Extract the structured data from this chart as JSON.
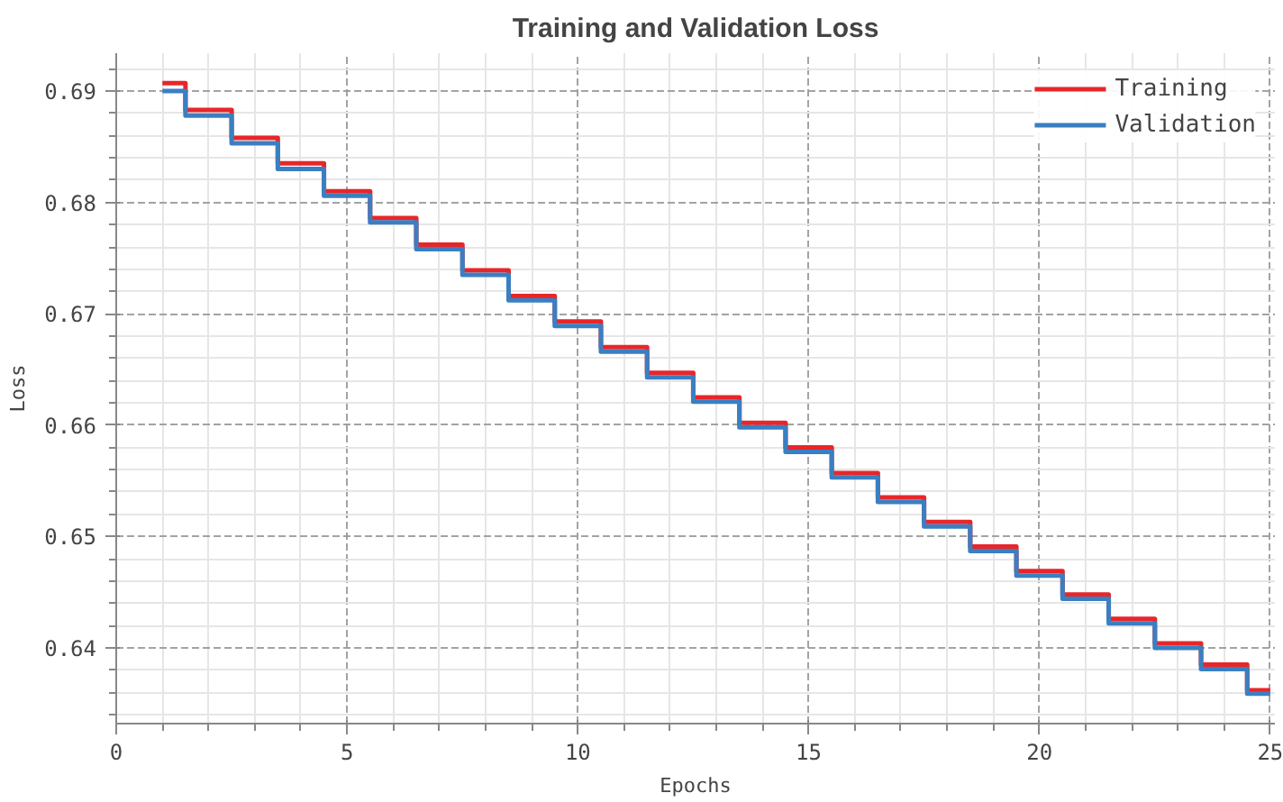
{
  "chart_data": {
    "type": "step",
    "title": "Training and Validation Loss",
    "xlabel": "Epochs",
    "ylabel": "Loss",
    "x": [
      1,
      2,
      3,
      4,
      5,
      6,
      7,
      8,
      9,
      10,
      11,
      12,
      13,
      14,
      15,
      16,
      17,
      18,
      19,
      20,
      21,
      22,
      23,
      24,
      25
    ],
    "series": [
      {
        "name": "Training",
        "color": "#e8262a",
        "values": [
          0.6907,
          0.6883,
          0.6858,
          0.6835,
          0.681,
          0.6786,
          0.6762,
          0.6739,
          0.6716,
          0.6693,
          0.667,
          0.6647,
          0.6625,
          0.6602,
          0.658,
          0.6557,
          0.6535,
          0.6513,
          0.6491,
          0.6469,
          0.6448,
          0.6426,
          0.6404,
          0.6385,
          0.6362
        ]
      },
      {
        "name": "Validation",
        "color": "#3a7fc1",
        "values": [
          0.69,
          0.6878,
          0.6853,
          0.683,
          0.6806,
          0.6782,
          0.6758,
          0.6735,
          0.6712,
          0.6689,
          0.6666,
          0.6643,
          0.6621,
          0.6598,
          0.6576,
          0.6553,
          0.6531,
          0.6509,
          0.6487,
          0.6465,
          0.6444,
          0.6422,
          0.64,
          0.6381,
          0.6359
        ]
      }
    ],
    "xlim": [
      0,
      25.1
    ],
    "ylim": [
      0.6332,
      0.6934
    ],
    "xticks": [
      0,
      5,
      10,
      15,
      20,
      25
    ],
    "yticks": [
      {
        "value": 0.64,
        "label": "0.64"
      },
      {
        "value": 0.65,
        "label": "0.65"
      },
      {
        "value": 0.66,
        "label": "0.66"
      },
      {
        "value": 0.67,
        "label": "0.67"
      },
      {
        "value": 0.68,
        "label": "0.68"
      },
      {
        "value": 0.69,
        "label": "0.69"
      }
    ],
    "grid": true,
    "legend": "top right",
    "line_style": "solid"
  }
}
